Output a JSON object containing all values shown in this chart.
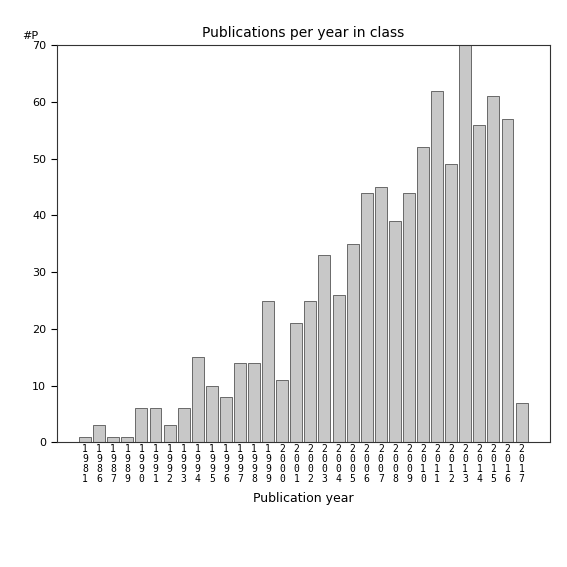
{
  "title": "Publications per year in class",
  "xlabel": "Publication year",
  "ylabel": "#P",
  "bar_color": "#c8c8c8",
  "bar_edgecolor": "#555555",
  "background_color": "#ffffff",
  "ylim": [
    0,
    70
  ],
  "yticks": [
    0,
    10,
    20,
    30,
    40,
    50,
    60,
    70
  ],
  "categories": [
    "1981",
    "1986",
    "1987",
    "1989",
    "1990",
    "1991",
    "1992",
    "1993",
    "1994",
    "1995",
    "1996",
    "1997",
    "1998",
    "1999",
    "2000",
    "2001",
    "2002",
    "2003",
    "2004",
    "2005",
    "2006",
    "2007",
    "2008",
    "2009",
    "2010",
    "2011",
    "2012",
    "2013",
    "2014",
    "2015",
    "2016",
    "2017"
  ],
  "values": [
    1,
    3,
    1,
    1,
    6,
    6,
    3,
    6,
    15,
    10,
    8,
    14,
    14,
    25,
    11,
    21,
    25,
    33,
    26,
    35,
    44,
    45,
    39,
    44,
    52,
    62,
    49,
    70,
    56,
    61,
    57,
    7
  ],
  "title_fontsize": 10,
  "xlabel_fontsize": 9,
  "tick_fontsize": 8,
  "xtick_fontsize": 7
}
